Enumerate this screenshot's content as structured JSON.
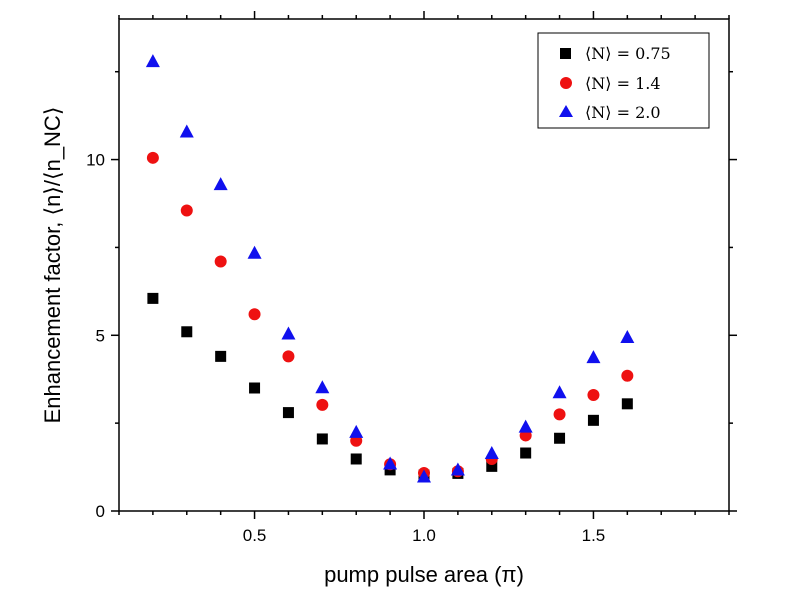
{
  "chart_data": {
    "type": "scatter",
    "xlabel": "pump pulse area (π)",
    "ylabel": "Enhancement factor, ⟨n⟩/⟨n_NC⟩",
    "xlim": [
      0.1,
      1.9
    ],
    "ylim": [
      0,
      14
    ],
    "x_ticks": [
      0.5,
      1.0,
      1.5
    ],
    "x_tick_labels": [
      "0.5",
      "1.0",
      "1.5"
    ],
    "y_ticks": [
      0,
      5,
      10
    ],
    "y_tick_labels": [
      "0",
      "5",
      "10"
    ],
    "grid": false,
    "legend_position": "top-right",
    "x": [
      0.2,
      0.3,
      0.4,
      0.5,
      0.6,
      0.7,
      0.8,
      0.9,
      1.0,
      1.1,
      1.2,
      1.3,
      1.4,
      1.5,
      1.6
    ],
    "series": [
      {
        "name": "⟨N⟩ = 0.75",
        "marker": "square",
        "color": "#000000",
        "values": [
          6.05,
          5.1,
          4.4,
          3.5,
          2.8,
          2.05,
          1.48,
          1.17,
          1.02,
          1.07,
          1.27,
          1.65,
          2.07,
          2.58,
          3.05
        ]
      },
      {
        "name": "⟨N⟩ = 1.4",
        "marker": "circle",
        "color": "#ee1111",
        "values": [
          10.05,
          8.55,
          7.1,
          5.6,
          4.4,
          3.02,
          2.0,
          1.33,
          1.08,
          1.13,
          1.48,
          2.15,
          2.75,
          3.3,
          3.85
        ]
      },
      {
        "name": "⟨N⟩ = 2.0",
        "marker": "triangle",
        "color": "#1010ee",
        "values": [
          12.8,
          10.8,
          9.3,
          7.35,
          5.05,
          3.52,
          2.25,
          1.35,
          0.98,
          1.18,
          1.65,
          2.4,
          3.38,
          4.38,
          4.95
        ]
      }
    ]
  }
}
